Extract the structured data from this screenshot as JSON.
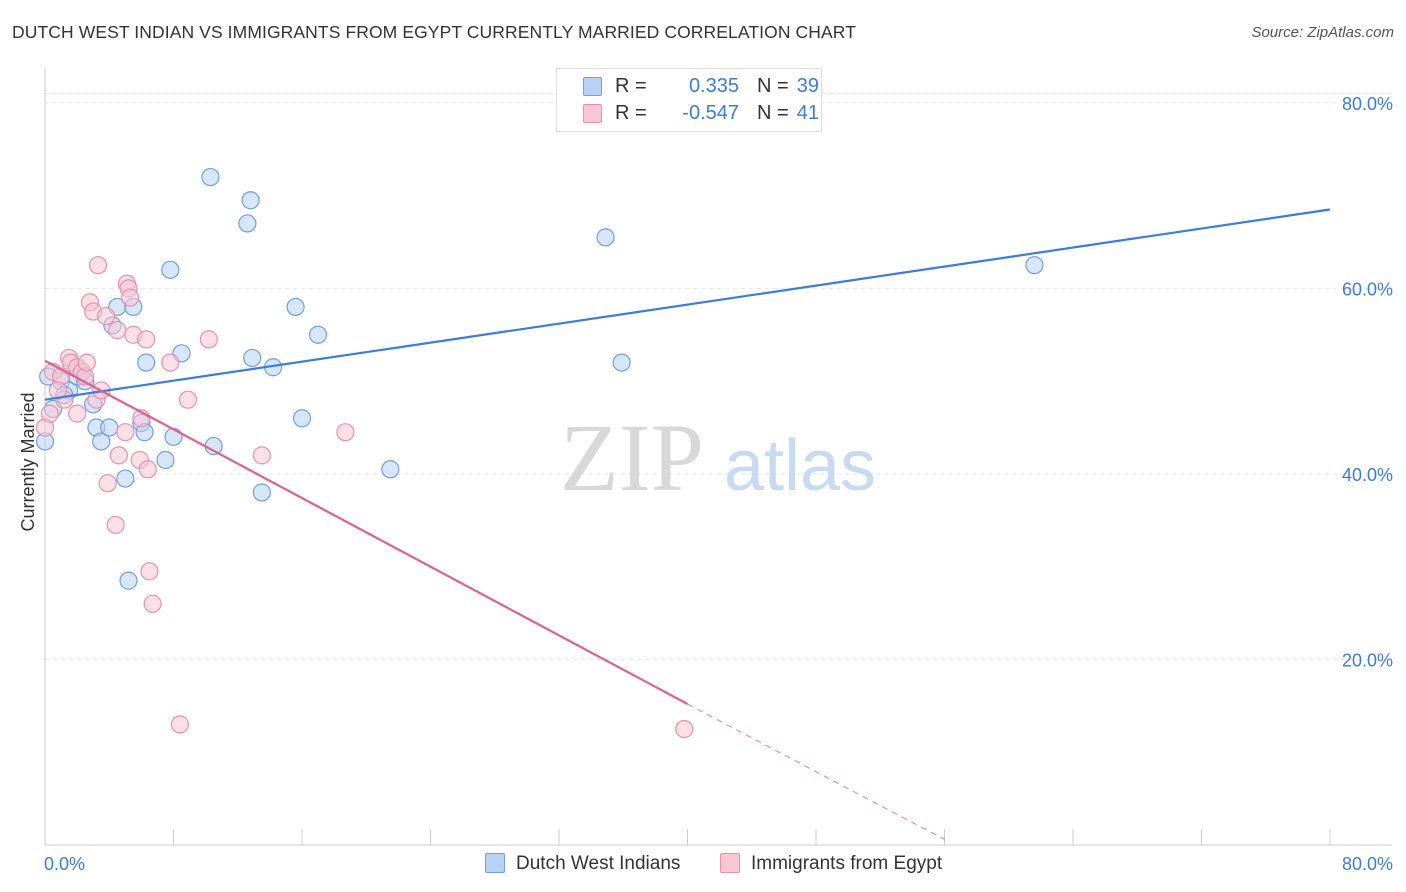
{
  "title": "DUTCH WEST INDIAN VS IMMIGRANTS FROM EGYPT CURRENTLY MARRIED CORRELATION CHART",
  "source": "Source: ZipAtlas.com",
  "watermark": {
    "zip": "ZIP",
    "atlas": "atlas"
  },
  "legend": {
    "r_label": "R =",
    "n_label": "N =",
    "rows": [
      {
        "r": "0.335",
        "n": "39",
        "fill": "#b8d2f5",
        "stroke": "#6fa0e0"
      },
      {
        "r": "-0.547",
        "n": "41",
        "fill": "#f9c6d6",
        "stroke": "#ec8fae"
      }
    ]
  },
  "chart_data": {
    "type": "scatter",
    "title": "DUTCH WEST INDIAN VS IMMIGRANTS FROM EGYPT CURRENTLY MARRIED CORRELATION CHART",
    "xlabel": "",
    "ylabel": "Currently Married",
    "xlim": [
      0,
      80
    ],
    "ylim": [
      0,
      83
    ],
    "x_tick_labels": [
      "0.0%",
      "80.0%"
    ],
    "y_ticks": [
      20,
      40,
      60,
      80
    ],
    "y_tick_labels": [
      "20.0%",
      "40.0%",
      "60.0%",
      "80.0%"
    ],
    "grid": true,
    "series": [
      {
        "name": "Dutch West Indians",
        "color": "#3b7dd8",
        "fill": "#b8d2f5",
        "r": 0.335,
        "n": 39,
        "points": [
          [
            0,
            43.5
          ],
          [
            0.5,
            47
          ],
          [
            1,
            50
          ],
          [
            1.5,
            49
          ],
          [
            2,
            50.5
          ],
          [
            2.3,
            51
          ],
          [
            2.5,
            50
          ],
          [
            3,
            47.5
          ],
          [
            3.2,
            45
          ],
          [
            3.5,
            43.5
          ],
          [
            4,
            45
          ],
          [
            4.2,
            56
          ],
          [
            4.5,
            58
          ],
          [
            5.5,
            58
          ],
          [
            5,
            39.5
          ],
          [
            5.2,
            28.5
          ],
          [
            6,
            45.5
          ],
          [
            6.2,
            44.5
          ],
          [
            6.3,
            52
          ],
          [
            7.5,
            41.5
          ],
          [
            7.8,
            62
          ],
          [
            8,
            44
          ],
          [
            8.5,
            53
          ],
          [
            10.5,
            43
          ],
          [
            10.3,
            72
          ],
          [
            12.6,
            67
          ],
          [
            12.8,
            69.5
          ],
          [
            12.9,
            52.5
          ],
          [
            13.5,
            38
          ],
          [
            14.2,
            51.5
          ],
          [
            15.6,
            58
          ],
          [
            16,
            46
          ],
          [
            17,
            55
          ],
          [
            21.5,
            40.5
          ],
          [
            34.9,
            65.5
          ],
          [
            35.9,
            52
          ],
          [
            61.6,
            62.5
          ],
          [
            0.2,
            50.5
          ],
          [
            1.2,
            48.5
          ]
        ],
        "trend": {
          "x0": 0,
          "y0": 48,
          "x1": 80,
          "y1": 68.5
        }
      },
      {
        "name": "Immigrants from Egypt",
        "color": "#e0608e",
        "fill": "#f9c6d6",
        "r": -0.547,
        "n": 41,
        "points": [
          [
            0,
            45
          ],
          [
            0.3,
            46.5
          ],
          [
            0.5,
            51
          ],
          [
            1,
            50.5
          ],
          [
            1.2,
            48
          ],
          [
            1.5,
            52.5
          ],
          [
            1.6,
            52
          ],
          [
            2,
            51.5
          ],
          [
            2,
            46.5
          ],
          [
            2.3,
            51
          ],
          [
            2.5,
            50.5
          ],
          [
            2.6,
            52
          ],
          [
            2.8,
            58.5
          ],
          [
            3,
            57.5
          ],
          [
            3.2,
            48
          ],
          [
            3.3,
            62.5
          ],
          [
            3.5,
            49
          ],
          [
            3.8,
            57
          ],
          [
            3.9,
            39
          ],
          [
            4.4,
            34.5
          ],
          [
            4.5,
            55.5
          ],
          [
            4.6,
            42
          ],
          [
            5,
            44.5
          ],
          [
            5.1,
            60.5
          ],
          [
            5.2,
            60
          ],
          [
            5.3,
            59
          ],
          [
            5.5,
            55
          ],
          [
            5.9,
            41.5
          ],
          [
            6,
            46
          ],
          [
            6.3,
            54.5
          ],
          [
            6.4,
            40.5
          ],
          [
            6.5,
            29.5
          ],
          [
            6.7,
            26
          ],
          [
            7.8,
            52
          ],
          [
            8.4,
            13
          ],
          [
            8.9,
            48
          ],
          [
            10.2,
            54.5
          ],
          [
            13.5,
            42
          ],
          [
            18.7,
            44.5
          ],
          [
            39.8,
            12.5
          ],
          [
            0.8,
            49
          ]
        ],
        "trend": {
          "x0": 0,
          "y0": 52.2,
          "x1": 40,
          "y1": 15.2
        },
        "trend_dashed": {
          "x0": 40,
          "y0": 15.2,
          "x1": 56,
          "y1": 0.6
        }
      }
    ]
  }
}
